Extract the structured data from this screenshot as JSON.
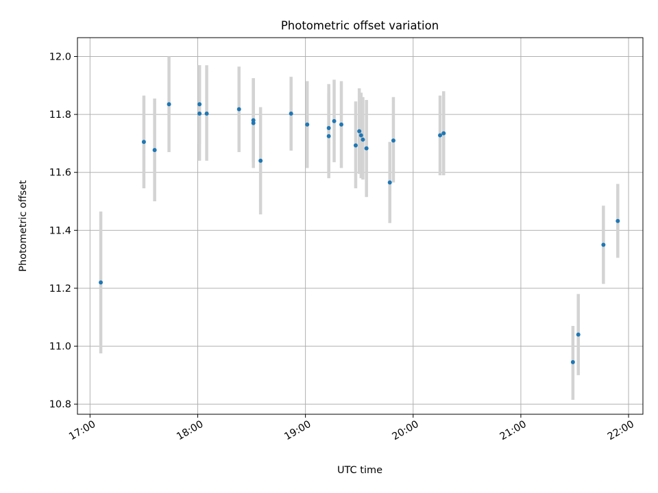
{
  "chart_data": {
    "type": "scatter",
    "title": "Photometric offset variation",
    "xlabel": "UTC time",
    "ylabel": "Photometric offset",
    "xlim": [
      "16:53",
      "22:08"
    ],
    "ylim": [
      10.765,
      12.065
    ],
    "x_ticks": [
      "17:00",
      "18:00",
      "19:00",
      "20:00",
      "21:00",
      "22:00"
    ],
    "y_ticks": [
      "10.8",
      "11.0",
      "11.2",
      "11.4",
      "11.6",
      "11.8",
      "12.0"
    ],
    "grid": true,
    "colors": {
      "point": "#1f77b4",
      "errorbar": "#d3d3d3",
      "grid": "#b0b0b0"
    },
    "points": [
      {
        "x": "17:06",
        "y": 11.22,
        "ymin": 10.975,
        "ymax": 11.465
      },
      {
        "x": "17:30",
        "y": 11.705,
        "ymin": 11.545,
        "ymax": 11.865
      },
      {
        "x": "17:36",
        "y": 11.677,
        "ymin": 11.5,
        "ymax": 11.855
      },
      {
        "x": "17:44",
        "y": 11.835,
        "ymin": 11.67,
        "ymax": 12.0
      },
      {
        "x": "18:01",
        "y": 11.835,
        "ymin": 11.7,
        "ymax": 11.97
      },
      {
        "x": "18:01",
        "y": 11.803,
        "ymin": 11.64,
        "ymax": 11.97
      },
      {
        "x": "18:05",
        "y": 11.803,
        "ymin": 11.64,
        "ymax": 11.97
      },
      {
        "x": "18:23",
        "y": 11.818,
        "ymin": 11.67,
        "ymax": 11.965
      },
      {
        "x": "18:31",
        "y": 11.78,
        "ymin": 11.635,
        "ymax": 11.925
      },
      {
        "x": "18:31",
        "y": 11.77,
        "ymin": 11.615,
        "ymax": 11.925
      },
      {
        "x": "18:35",
        "y": 11.64,
        "ymin": 11.455,
        "ymax": 11.825
      },
      {
        "x": "18:52",
        "y": 11.803,
        "ymin": 11.675,
        "ymax": 11.93
      },
      {
        "x": "19:01",
        "y": 11.765,
        "ymin": 11.615,
        "ymax": 11.915
      },
      {
        "x": "19:13",
        "y": 11.753,
        "ymin": 11.6,
        "ymax": 11.905
      },
      {
        "x": "19:13",
        "y": 11.725,
        "ymin": 11.58,
        "ymax": 11.875
      },
      {
        "x": "19:16",
        "y": 11.777,
        "ymin": 11.635,
        "ymax": 11.92
      },
      {
        "x": "19:20",
        "y": 11.765,
        "ymin": 11.615,
        "ymax": 11.915
      },
      {
        "x": "19:28",
        "y": 11.693,
        "ymin": 11.545,
        "ymax": 11.845
      },
      {
        "x": "19:30",
        "y": 11.742,
        "ymin": 11.595,
        "ymax": 11.89
      },
      {
        "x": "19:31",
        "y": 11.728,
        "ymin": 11.58,
        "ymax": 11.875
      },
      {
        "x": "19:32",
        "y": 11.713,
        "ymin": 11.575,
        "ymax": 11.86
      },
      {
        "x": "19:34",
        "y": 11.683,
        "ymin": 11.515,
        "ymax": 11.85
      },
      {
        "x": "19:47",
        "y": 11.565,
        "ymin": 11.425,
        "ymax": 11.705
      },
      {
        "x": "19:49",
        "y": 11.71,
        "ymin": 11.565,
        "ymax": 11.86
      },
      {
        "x": "20:15",
        "y": 11.728,
        "ymin": 11.59,
        "ymax": 11.865
      },
      {
        "x": "20:17",
        "y": 11.735,
        "ymin": 11.59,
        "ymax": 11.88
      },
      {
        "x": "21:29",
        "y": 10.945,
        "ymin": 10.815,
        "ymax": 11.07
      },
      {
        "x": "21:32",
        "y": 11.04,
        "ymin": 10.9,
        "ymax": 11.18
      },
      {
        "x": "21:46",
        "y": 11.35,
        "ymin": 11.215,
        "ymax": 11.485
      },
      {
        "x": "21:54",
        "y": 11.432,
        "ymin": 11.305,
        "ymax": 11.56
      }
    ]
  }
}
